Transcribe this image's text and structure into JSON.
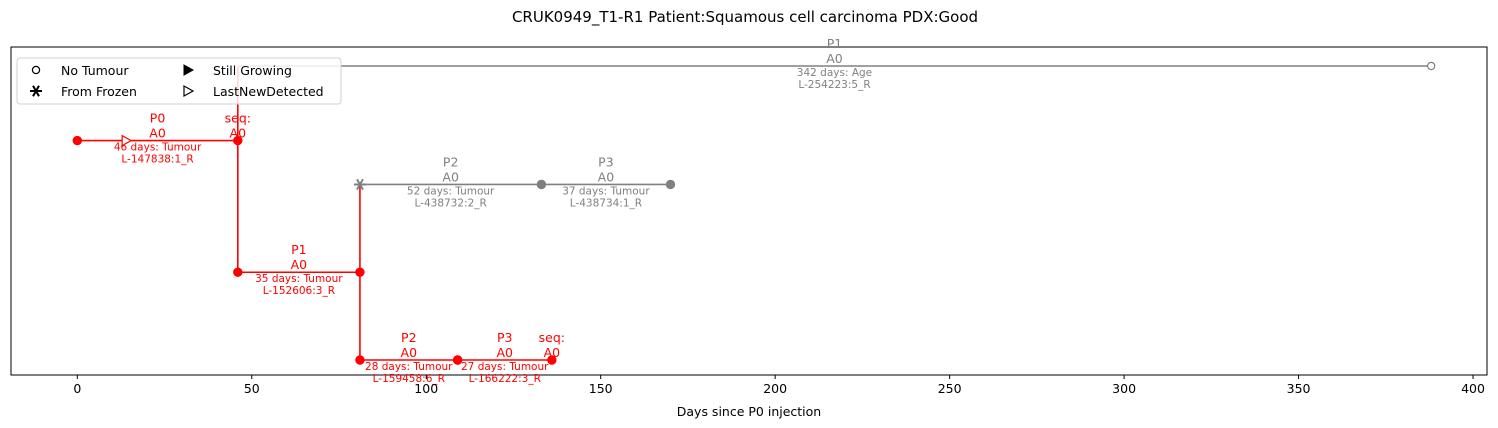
{
  "chart_data": {
    "type": "timeline",
    "title": "CRUK0949_T1-R1  Patient:Squamous cell carcinoma  PDX:Good",
    "xlabel": "Days since P0 injection",
    "xlim": [
      -19,
      404
    ],
    "ylim": [
      0,
      1
    ],
    "x_ticks": [
      0,
      50,
      100,
      150,
      200,
      250,
      300,
      350,
      400
    ],
    "grid": false,
    "colors": {
      "red": "#ff0000",
      "gray": "#808080"
    },
    "legend": {
      "placement": "upper-left",
      "entries": [
        {
          "label": "No Tumour",
          "marker": "open-circle"
        },
        {
          "label": "Still Growing",
          "marker": "filled-triangle-right"
        },
        {
          "label": "From Frozen",
          "marker": "asterisk"
        },
        {
          "label": "LastNewDetected",
          "marker": "open-triangle-right"
        }
      ]
    },
    "segments": [
      {
        "x0": 0,
        "x1": 46,
        "lane": 0.725,
        "color": "red",
        "top": "P0\nA0",
        "bottom": "46 days: Tumour\nL-147838:1_R",
        "start_marker": "filled-circle",
        "end_marker": "filled-circle",
        "mid_marker": {
          "x": 14,
          "type": "open-triangle-right"
        }
      },
      {
        "x0": 46,
        "x1": 46,
        "lane": 0.725,
        "color": "red",
        "top": "seq:\nA0",
        "bottom": ""
      },
      {
        "x0": 46,
        "x1": 388,
        "lane": 0.98,
        "color": "gray",
        "top": "P1\nA0",
        "bottom": "342 days: Age\nL-254223:5_R",
        "start_marker": "none",
        "end_marker": "open-circle"
      },
      {
        "x0": 46,
        "x1": 81,
        "lane": 0.275,
        "color": "red",
        "top": "P1\nA0",
        "bottom": "35 days: Tumour\nL-152606:3_R",
        "start_marker": "filled-circle",
        "end_marker": "filled-circle"
      },
      {
        "x0": 81,
        "x1": 133,
        "lane": 0.575,
        "color": "gray",
        "top": "P2\nA0",
        "bottom": "52 days: Tumour\nL-438732:2_R",
        "start_marker": "asterisk",
        "end_marker": "filled-circle"
      },
      {
        "x0": 133,
        "x1": 170,
        "lane": 0.575,
        "color": "gray",
        "top": "P3\nA0",
        "bottom": "37 days: Tumour\nL-438734:1_R",
        "start_marker": "filled-circle",
        "end_marker": "filled-circle"
      },
      {
        "x0": 81,
        "x1": 109,
        "lane": -0.025,
        "color": "red",
        "top": "P2\nA0",
        "bottom": "28 days: Tumour\nL-159458:6_R",
        "start_marker": "filled-circle",
        "end_marker": "filled-circle"
      },
      {
        "x0": 109,
        "x1": 136,
        "lane": -0.025,
        "color": "red",
        "top": "P3\nA0",
        "bottom": "27 days: Tumour\nL-166222:3_R",
        "start_marker": "filled-circle",
        "end_marker": "filled-circle"
      },
      {
        "x0": 136,
        "x1": 136,
        "lane": -0.025,
        "color": "red",
        "top": "seq:\nA0",
        "bottom": ""
      }
    ],
    "connectors": [
      {
        "x": 46,
        "from_lane": 0.98,
        "to_lane": 0.275,
        "color": "red"
      },
      {
        "x": 81,
        "from_lane": 0.575,
        "to_lane": -0.025,
        "color": "red"
      }
    ]
  }
}
